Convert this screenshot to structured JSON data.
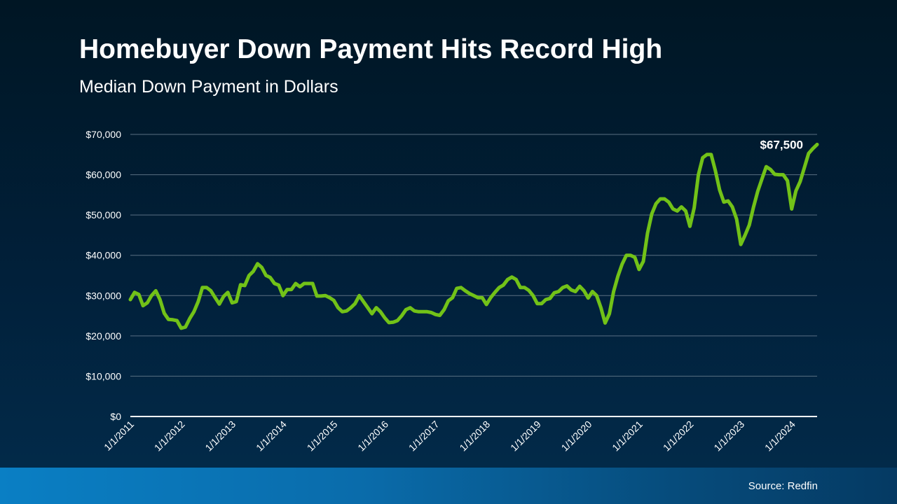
{
  "title": "Homebuyer Down Payment Hits Record High",
  "subtitle": "Median Down Payment in Dollars",
  "source": "Source: Redfin",
  "colors": {
    "line": "#72c218",
    "grid": "#5a6f82",
    "axis": "#ffffff",
    "text": "#ffffff",
    "background_top": "#001624",
    "background_bottom": "#022c4c",
    "footer_bar": "#0a7fc4"
  },
  "chart_data": {
    "type": "line",
    "title": "Homebuyer Down Payment Hits Record High",
    "subtitle": "Median Down Payment in Dollars",
    "xlabel": "",
    "ylabel": "",
    "ylim": [
      0,
      70000
    ],
    "yticks": [
      0,
      10000,
      20000,
      30000,
      40000,
      50000,
      60000,
      70000
    ],
    "ytick_labels": [
      "$0",
      "$10,000",
      "$20,000",
      "$30,000",
      "$40,000",
      "$50,000",
      "$60,000",
      "$70,000"
    ],
    "xlim": [
      "1/1/2011",
      "7/1/2024"
    ],
    "xtick_labels": [
      "1/1/2011",
      "1/1/2012",
      "1/1/2013",
      "1/1/2014",
      "1/1/2015",
      "1/1/2016",
      "1/1/2017",
      "1/1/2018",
      "1/1/2019",
      "1/1/2020",
      "1/1/2021",
      "1/1/2022",
      "1/1/2023",
      "1/1/2024"
    ],
    "grid": true,
    "annotations": [
      {
        "x": "7/1/2024",
        "y": 67500,
        "text": "$67,500"
      }
    ],
    "series": [
      {
        "values": [
          [
            "1/1/2011",
            29000
          ],
          [
            "2/1/2011",
            30800
          ],
          [
            "3/1/2011",
            30300
          ],
          [
            "4/1/2011",
            27500
          ],
          [
            "5/1/2011",
            28200
          ],
          [
            "6/1/2011",
            30000
          ],
          [
            "7/1/2011",
            31200
          ],
          [
            "8/1/2011",
            29000
          ],
          [
            "9/1/2011",
            25600
          ],
          [
            "10/1/2011",
            24100
          ],
          [
            "11/1/2011",
            24000
          ],
          [
            "12/1/2011",
            23800
          ],
          [
            "1/1/2012",
            21900
          ],
          [
            "2/1/2012",
            22200
          ],
          [
            "3/1/2012",
            24300
          ],
          [
            "4/1/2012",
            26000
          ],
          [
            "5/1/2012",
            28500
          ],
          [
            "6/1/2012",
            32000
          ],
          [
            "7/1/2012",
            32000
          ],
          [
            "8/1/2012",
            31200
          ],
          [
            "9/1/2012",
            29500
          ],
          [
            "10/1/2012",
            27900
          ],
          [
            "11/1/2012",
            29800
          ],
          [
            "12/1/2012",
            30800
          ],
          [
            "1/1/2013",
            28200
          ],
          [
            "2/1/2013",
            28500
          ],
          [
            "3/1/2013",
            32700
          ],
          [
            "4/1/2013",
            32500
          ],
          [
            "5/1/2013",
            35000
          ],
          [
            "6/1/2013",
            36000
          ],
          [
            "7/1/2013",
            37900
          ],
          [
            "8/1/2013",
            37000
          ],
          [
            "9/1/2013",
            35000
          ],
          [
            "10/1/2013",
            34500
          ],
          [
            "11/1/2013",
            33000
          ],
          [
            "12/1/2013",
            32600
          ],
          [
            "1/1/2014",
            30000
          ],
          [
            "2/1/2014",
            31500
          ],
          [
            "3/1/2014",
            31500
          ],
          [
            "4/1/2014",
            33000
          ],
          [
            "5/1/2014",
            32200
          ],
          [
            "6/1/2014",
            33000
          ],
          [
            "7/1/2014",
            33000
          ],
          [
            "8/1/2014",
            33000
          ],
          [
            "9/1/2014",
            29900
          ],
          [
            "10/1/2014",
            29900
          ],
          [
            "11/1/2014",
            30000
          ],
          [
            "12/1/2014",
            29500
          ],
          [
            "1/1/2015",
            28800
          ],
          [
            "2/1/2015",
            27000
          ],
          [
            "3/1/2015",
            26000
          ],
          [
            "4/1/2015",
            26200
          ],
          [
            "5/1/2015",
            27000
          ],
          [
            "6/1/2015",
            28000
          ],
          [
            "7/1/2015",
            30000
          ],
          [
            "8/1/2015",
            28500
          ],
          [
            "9/1/2015",
            27000
          ],
          [
            "10/1/2015",
            25500
          ],
          [
            "11/1/2015",
            27000
          ],
          [
            "12/1/2015",
            26000
          ],
          [
            "1/1/2016",
            24500
          ],
          [
            "2/1/2016",
            23300
          ],
          [
            "3/1/2016",
            23400
          ],
          [
            "4/1/2016",
            23800
          ],
          [
            "5/1/2016",
            25000
          ],
          [
            "6/1/2016",
            26500
          ],
          [
            "7/1/2016",
            27000
          ],
          [
            "8/1/2016",
            26200
          ],
          [
            "9/1/2016",
            26000
          ],
          [
            "10/1/2016",
            26000
          ],
          [
            "11/1/2016",
            26000
          ],
          [
            "12/1/2016",
            25800
          ],
          [
            "1/1/2017",
            25300
          ],
          [
            "2/1/2017",
            25100
          ],
          [
            "3/1/2017",
            26500
          ],
          [
            "4/1/2017",
            28700
          ],
          [
            "5/1/2017",
            29500
          ],
          [
            "6/1/2017",
            31800
          ],
          [
            "7/1/2017",
            32000
          ],
          [
            "8/1/2017",
            31200
          ],
          [
            "9/1/2017",
            30500
          ],
          [
            "10/1/2017",
            30000
          ],
          [
            "11/1/2017",
            29500
          ],
          [
            "12/1/2017",
            29500
          ],
          [
            "1/1/2018",
            27800
          ],
          [
            "2/1/2018",
            29500
          ],
          [
            "3/1/2018",
            30800
          ],
          [
            "4/1/2018",
            32000
          ],
          [
            "5/1/2018",
            32600
          ],
          [
            "6/1/2018",
            34000
          ],
          [
            "7/1/2018",
            34600
          ],
          [
            "8/1/2018",
            34000
          ],
          [
            "9/1/2018",
            32000
          ],
          [
            "10/1/2018",
            32000
          ],
          [
            "11/1/2018",
            31300
          ],
          [
            "12/1/2018",
            30000
          ],
          [
            "1/1/2019",
            28000
          ],
          [
            "2/1/2019",
            28000
          ],
          [
            "3/1/2019",
            29000
          ],
          [
            "4/1/2019",
            29300
          ],
          [
            "5/1/2019",
            30700
          ],
          [
            "6/1/2019",
            31000
          ],
          [
            "7/1/2019",
            32000
          ],
          [
            "8/1/2019",
            32400
          ],
          [
            "9/1/2019",
            31400
          ],
          [
            "10/1/2019",
            31000
          ],
          [
            "11/1/2019",
            32300
          ],
          [
            "12/1/2019",
            31200
          ],
          [
            "1/1/2020",
            29400
          ],
          [
            "2/1/2020",
            31000
          ],
          [
            "3/1/2020",
            30000
          ],
          [
            "4/1/2020",
            27000
          ],
          [
            "5/1/2020",
            23200
          ],
          [
            "6/1/2020",
            25500
          ],
          [
            "7/1/2020",
            31000
          ],
          [
            "8/1/2020",
            34800
          ],
          [
            "9/1/2020",
            37800
          ],
          [
            "10/1/2020",
            40000
          ],
          [
            "11/1/2020",
            40000
          ],
          [
            "12/1/2020",
            39500
          ],
          [
            "1/1/2021",
            36500
          ],
          [
            "2/1/2021",
            38500
          ],
          [
            "3/1/2021",
            45500
          ],
          [
            "4/1/2021",
            50300
          ],
          [
            "5/1/2021",
            52800
          ],
          [
            "6/1/2021",
            54000
          ],
          [
            "7/1/2021",
            54000
          ],
          [
            "8/1/2021",
            53200
          ],
          [
            "9/1/2021",
            51500
          ],
          [
            "10/1/2021",
            51000
          ],
          [
            "11/1/2021",
            52000
          ],
          [
            "12/1/2021",
            51000
          ],
          [
            "1/1/2022",
            47200
          ],
          [
            "2/1/2022",
            51800
          ],
          [
            "3/1/2022",
            60000
          ],
          [
            "4/1/2022",
            64200
          ],
          [
            "5/1/2022",
            65000
          ],
          [
            "6/1/2022",
            65000
          ],
          [
            "7/1/2022",
            61000
          ],
          [
            "8/1/2022",
            56200
          ],
          [
            "9/1/2022",
            53200
          ],
          [
            "10/1/2022",
            53500
          ],
          [
            "11/1/2022",
            52000
          ],
          [
            "12/1/2022",
            49000
          ],
          [
            "1/1/2023",
            42700
          ],
          [
            "2/1/2023",
            45000
          ],
          [
            "3/1/2023",
            47500
          ],
          [
            "4/1/2023",
            52000
          ],
          [
            "5/1/2023",
            55900
          ],
          [
            "6/1/2023",
            59000
          ],
          [
            "7/1/2023",
            62000
          ],
          [
            "8/1/2023",
            61300
          ],
          [
            "9/1/2023",
            60100
          ],
          [
            "10/1/2023",
            60000
          ],
          [
            "11/1/2023",
            60000
          ],
          [
            "12/1/2023",
            58500
          ],
          [
            "1/1/2024",
            51500
          ],
          [
            "2/1/2024",
            56000
          ],
          [
            "3/1/2024",
            58300
          ],
          [
            "4/1/2024",
            61800
          ],
          [
            "5/1/2024",
            65300
          ],
          [
            "6/1/2024",
            66500
          ],
          [
            "7/1/2024",
            67500
          ]
        ]
      }
    ]
  }
}
